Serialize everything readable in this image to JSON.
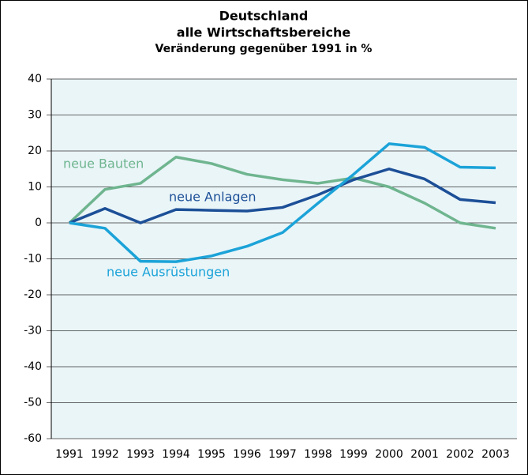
{
  "chart_data": {
    "type": "line",
    "title": "Deutschland",
    "subtitle": [
      "alle Wirtschaftsbereiche",
      "Veränderung gegenüber 1991 in %"
    ],
    "categories": [
      "1991",
      "1992",
      "1993",
      "1994",
      "1995",
      "1996",
      "1997",
      "1998",
      "1999",
      "2000",
      "2001",
      "2002",
      "2003"
    ],
    "series": [
      {
        "name": "neue Bauten",
        "color": "#6fb58f",
        "values": [
          0,
          9.3,
          11,
          18.3,
          16.5,
          13.5,
          12,
          11,
          12.5,
          10,
          5.5,
          0,
          -1.5
        ]
      },
      {
        "name": "neue Anlagen",
        "color": "#1c4f97",
        "values": [
          0,
          4,
          0,
          3.7,
          3.5,
          3.3,
          4.3,
          7.8,
          12,
          15,
          12.2,
          6.5,
          5.6
        ]
      },
      {
        "name": "neue Ausrüstungen",
        "color": "#1ba3d8",
        "values": [
          0,
          -1.5,
          -10.7,
          -10.8,
          -9.2,
          -6.5,
          -2.7,
          5.5,
          13.5,
          22,
          21,
          15.5,
          15.3
        ]
      }
    ],
    "ylim": [
      -60,
      40
    ],
    "yticks": [
      -60,
      -50,
      -40,
      -30,
      -20,
      -10,
      0,
      10,
      20,
      30,
      40
    ],
    "grid": true
  }
}
